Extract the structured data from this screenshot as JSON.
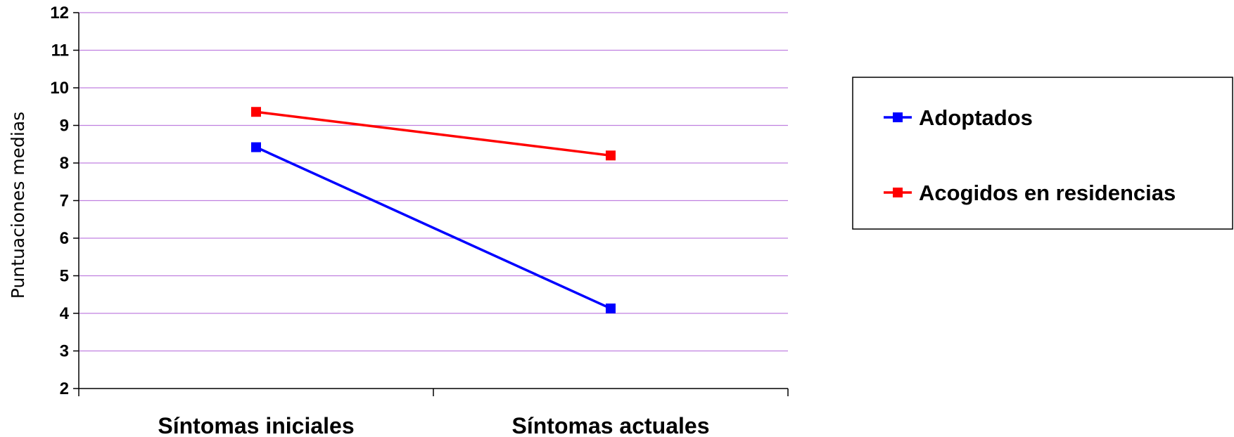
{
  "chart_data": {
    "type": "line",
    "title": "",
    "xlabel": "",
    "ylabel": "Puntuaciones medias",
    "categories": [
      "Síntomas iniciales",
      "Síntomas actuales"
    ],
    "ylim": [
      2,
      12
    ],
    "yticks": [
      "2",
      "3",
      "4",
      "5",
      "6",
      "7",
      "8",
      "9",
      "10",
      "11",
      "12"
    ],
    "grid": true,
    "legend_position": "right",
    "series": [
      {
        "name": "Adoptados",
        "values": [
          8.42,
          4.13
        ],
        "color": "#0000FF",
        "marker": "square"
      },
      {
        "name": "Acogidos en residencias",
        "values": [
          9.36,
          8.2
        ],
        "color": "#FF0000",
        "marker": "square"
      }
    ],
    "gridline_color": "#C080E0"
  }
}
